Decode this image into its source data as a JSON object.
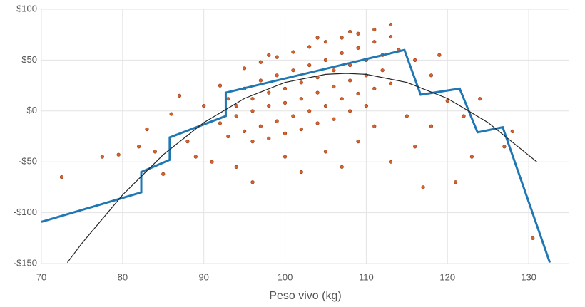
{
  "chart_data": {
    "type": "scatter",
    "x_label": "Peso vivo (kg)",
    "xlim": [
      70,
      135
    ],
    "xticks": [
      70,
      80,
      90,
      100,
      110,
      120,
      130
    ],
    "ylim": [
      -150,
      100
    ],
    "yticks": [
      {
        "value": -150,
        "label": "-$150"
      },
      {
        "value": -100,
        "label": "-$100"
      },
      {
        "value": -50,
        "label": "-$50"
      },
      {
        "value": 0,
        "label": "$0"
      },
      {
        "value": 50,
        "label": "$50"
      },
      {
        "value": 100,
        "label": "$100"
      }
    ],
    "grid": true,
    "series": [
      {
        "type": "scatter",
        "color": "#d9622b",
        "x": [
          95,
          97,
          99,
          101,
          103,
          105,
          107,
          109,
          111,
          113,
          93,
          95,
          97,
          99,
          101,
          103,
          105,
          107,
          109,
          111,
          113,
          94,
          96,
          98,
          100,
          102,
          104,
          106,
          108,
          110,
          112,
          114,
          92,
          94,
          96,
          98,
          100,
          102,
          104,
          106,
          108,
          110,
          112,
          93,
          95,
          97,
          99,
          101,
          103,
          105,
          107,
          109,
          111,
          113,
          96,
          98,
          100,
          102,
          104,
          106,
          108,
          110,
          72.5,
          77.5,
          79.5,
          82,
          83,
          84,
          85,
          86,
          87,
          88,
          89,
          90,
          91,
          92,
          94,
          96,
          98,
          100,
          102,
          105,
          107,
          109,
          111,
          113,
          115,
          116,
          117,
          118,
          119,
          120,
          121,
          122,
          123,
          124,
          127,
          130.5,
          128,
          118,
          116,
          104,
          108
        ],
        "values": [
          42,
          48,
          53,
          58,
          63,
          68,
          72,
          76,
          80,
          85,
          12,
          22,
          30,
          35,
          40,
          45,
          50,
          57,
          62,
          68,
          73,
          5,
          12,
          18,
          22,
          28,
          33,
          40,
          45,
          50,
          55,
          60,
          -12,
          -5,
          0,
          5,
          8,
          12,
          18,
          24,
          30,
          35,
          40,
          -25,
          -20,
          -15,
          -10,
          -5,
          0,
          5,
          12,
          17,
          22,
          27,
          -30,
          -27,
          -22,
          -18,
          -12,
          -8,
          0,
          5,
          -65,
          -45,
          -43,
          -35,
          -18,
          -40,
          -62,
          -3,
          15,
          -30,
          -45,
          5,
          -50,
          25,
          -55,
          -70,
          55,
          -45,
          -60,
          -40,
          -55,
          -30,
          -15,
          -50,
          -5,
          -35,
          -75,
          -15,
          55,
          10,
          -70,
          -5,
          -45,
          12,
          -35,
          -125,
          -20,
          35,
          50,
          72,
          78
        ]
      },
      {
        "type": "line",
        "color": "#1f77b4",
        "x": [
          70,
          79.8,
          82.3,
          82.3,
          85.8,
          85.8,
          92.7,
          92.7,
          114.7,
          116.7,
          121.5,
          123.7,
          126.8,
          132.6
        ],
        "values": [
          -109,
          -86,
          -80,
          -60,
          -48,
          -26,
          -5,
          18,
          60,
          16,
          22,
          -21,
          -16,
          -149
        ]
      },
      {
        "type": "line",
        "color": "#222222",
        "x": [
          73.2,
          75,
          80,
          85,
          90,
          95,
          100,
          105,
          107.5,
          110,
          115,
          120,
          125,
          131
        ],
        "values": [
          -149,
          -130,
          -82.5,
          -43,
          -11.4,
          12.3,
          28.1,
          36,
          37,
          36,
          28.1,
          12.3,
          -11.4,
          -50
        ]
      }
    ]
  }
}
